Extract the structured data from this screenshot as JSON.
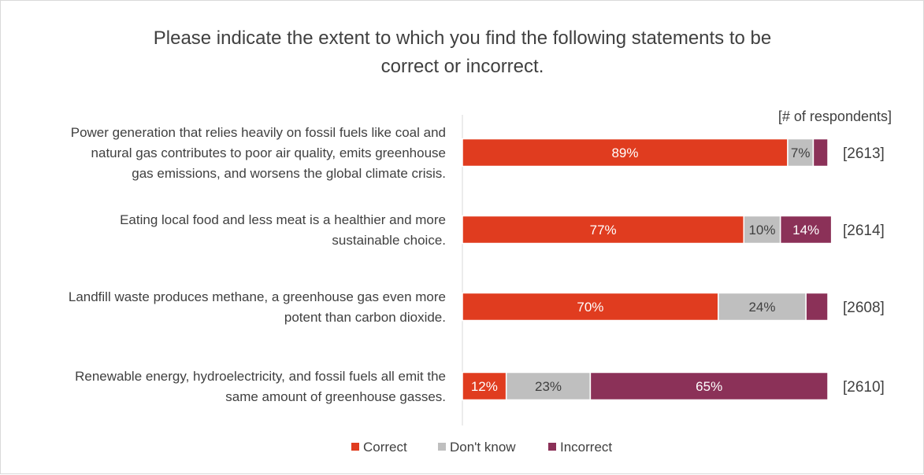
{
  "chart_data": {
    "type": "bar",
    "orientation": "horizontal",
    "stacked": true,
    "title_lines": [
      "Please indicate the extent to which you find the following statements  to be",
      "correct or incorrect."
    ],
    "respondents_header": "[# of respondents]",
    "categories": [
      {
        "label_lines": [
          "Power generation that relies heavily on fossil fuels like coal and",
          "natural gas contributes to poor air quality, emits greenhouse",
          "gas emissions, and worsens the global climate crisis."
        ],
        "respondents": "[2613]"
      },
      {
        "label_lines": [
          "Eating local food and less meat is a healthier and more",
          "sustainable choice."
        ],
        "respondents": "[2614]"
      },
      {
        "label_lines": [
          "Landfill waste produces methane, a greenhouse gas even more",
          "potent than carbon dioxide."
        ],
        "respondents": "[2608]"
      },
      {
        "label_lines": [
          "Renewable energy, hydroelectricity, and fossil fuels all emit the",
          "same amount of greenhouse gasses."
        ],
        "respondents": "[2610]"
      }
    ],
    "series": [
      {
        "name": "Correct",
        "color": "#e03c1f",
        "label_color": "#ffffff",
        "values": [
          89,
          77,
          70,
          12
        ],
        "labels": [
          "89%",
          "77%",
          "70%",
          "12%"
        ]
      },
      {
        "name": "Don't know",
        "color": "#bfbfbf",
        "label_color": "#404040",
        "values": [
          7,
          10,
          24,
          23
        ],
        "labels": [
          "7%",
          "10%",
          "24%",
          "23%"
        ]
      },
      {
        "name": "Incorrect",
        "color": "#8b3158",
        "label_color": "#ffffff",
        "values": [
          4,
          14,
          6,
          65
        ],
        "labels": [
          "",
          "14%",
          "",
          "65%"
        ]
      }
    ],
    "xlim": [
      0,
      100
    ],
    "grid": false,
    "legend_position": "bottom"
  }
}
